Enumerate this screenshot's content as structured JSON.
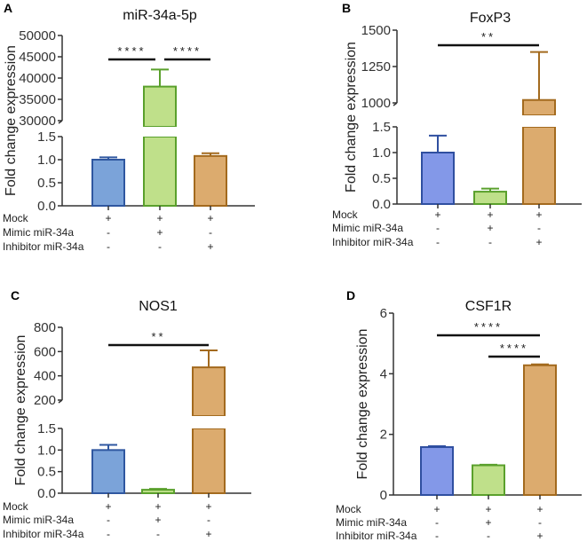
{
  "chart_data": [
    {
      "type": "bar",
      "panel": "A",
      "title": "miR-34a-5p",
      "ylabel": "Fold change expression",
      "broken_axis": true,
      "lower_ylim": [
        0,
        1.5
      ],
      "lower_ticks": [
        "0.0",
        "0.5",
        "1.0",
        "1.5"
      ],
      "upper_ylim": [
        30000,
        50000
      ],
      "upper_ticks": [
        "30000",
        "35000",
        "40000",
        "45000",
        "50000"
      ],
      "categories": [
        "Mock",
        "Mimic miR-34a",
        "Inhibitor miR-34a"
      ],
      "values": [
        1.0,
        38000,
        1.08
      ],
      "error_upper": [
        1.05,
        42000,
        1.14
      ],
      "colors": [
        "#7ba3d9",
        "#bfe08a",
        "#dcab6e"
      ],
      "edge_colors": [
        "#2f57a0",
        "#5aa02c",
        "#a36a1e"
      ],
      "treatment_rows": [
        {
          "label": "Mock",
          "marks": [
            "+",
            "+",
            "+"
          ]
        },
        {
          "label": "Mimic miR-34a",
          "marks": [
            "-",
            "+",
            "-"
          ]
        },
        {
          "label": "Inhibitor miR-34a",
          "marks": [
            "-",
            "-",
            "+"
          ]
        }
      ],
      "significance": [
        {
          "from": 0,
          "to": 1,
          "label": "****"
        },
        {
          "from": 1,
          "to": 2,
          "label": "****"
        }
      ]
    },
    {
      "type": "bar",
      "panel": "B",
      "title": "FoxP3",
      "ylabel": "Fold change expression",
      "broken_axis": true,
      "lower_ylim": [
        0,
        1.5
      ],
      "lower_ticks": [
        "0.0",
        "0.5",
        "1.0",
        "1.5"
      ],
      "upper_ylim": [
        1000,
        1500
      ],
      "upper_ticks": [
        "1000",
        "1250",
        "1500"
      ],
      "categories": [
        "Mock",
        "Mimic miR-34a",
        "Inhibitor miR-34a"
      ],
      "values": [
        1.0,
        0.24,
        1020
      ],
      "error_upper": [
        1.33,
        0.3,
        1350
      ],
      "colors": [
        "#8398e8",
        "#bfe08a",
        "#dcab6e"
      ],
      "edge_colors": [
        "#2f4fa0",
        "#5aa02c",
        "#a36a1e"
      ],
      "treatment_rows": [
        {
          "label": "Mock",
          "marks": [
            "+",
            "+",
            "+"
          ]
        },
        {
          "label": "Mimic miR-34a",
          "marks": [
            "-",
            "+",
            "-"
          ]
        },
        {
          "label": "Inhibitor miR-34a",
          "marks": [
            "-",
            "-",
            "+"
          ]
        }
      ],
      "significance": [
        {
          "from": 0,
          "to": 2,
          "label": "**"
        }
      ]
    },
    {
      "type": "bar",
      "panel": "C",
      "title": "NOS1",
      "ylabel": "Fold change expression",
      "broken_axis": true,
      "lower_ylim": [
        0,
        1.5
      ],
      "lower_ticks": [
        "0.0",
        "0.5",
        "1.0",
        "1.5"
      ],
      "upper_ylim": [
        200,
        800
      ],
      "upper_ticks": [
        "200",
        "400",
        "600",
        "800"
      ],
      "categories": [
        "Mock",
        "Mimic miR-34a",
        "Inhibitor miR-34a"
      ],
      "values": [
        1.0,
        0.08,
        470
      ],
      "error_upper": [
        1.12,
        0.1,
        610
      ],
      "colors": [
        "#7ba3d9",
        "#bfe08a",
        "#dcab6e"
      ],
      "edge_colors": [
        "#2f57a0",
        "#5aa02c",
        "#a36a1e"
      ],
      "treatment_rows": [
        {
          "label": "Mock",
          "marks": [
            "+",
            "+",
            "+"
          ]
        },
        {
          "label": "Mimic miR-34a",
          "marks": [
            "-",
            "+",
            "-"
          ]
        },
        {
          "label": "Inhibitor miR-34a",
          "marks": [
            "-",
            "-",
            "+"
          ]
        }
      ],
      "significance": [
        {
          "from": 0,
          "to": 2,
          "label": "**"
        }
      ]
    },
    {
      "type": "bar",
      "panel": "D",
      "title": "CSF1R",
      "ylabel": "Fold change expression",
      "broken_axis": false,
      "ylim": [
        0,
        6
      ],
      "ticks": [
        "0",
        "2",
        "4",
        "6"
      ],
      "categories": [
        "Mock",
        "Mimic miR-34a",
        "Inhibitor miR-34a"
      ],
      "values": [
        1.58,
        0.98,
        4.28
      ],
      "error_upper": [
        1.61,
        1.0,
        4.31
      ],
      "colors": [
        "#8398e8",
        "#bfe08a",
        "#dcab6e"
      ],
      "edge_colors": [
        "#2f4fa0",
        "#5aa02c",
        "#a36a1e"
      ],
      "treatment_rows": [
        {
          "label": "Mock",
          "marks": [
            "+",
            "+",
            "+"
          ]
        },
        {
          "label": "Mimic miR-34a",
          "marks": [
            "-",
            "+",
            "-"
          ]
        },
        {
          "label": "Inhibitor miR-34a",
          "marks": [
            "-",
            "-",
            "+"
          ]
        }
      ],
      "significance": [
        {
          "from": 0,
          "to": 2,
          "label": "****"
        },
        {
          "from": 1,
          "to": 2,
          "label": "****"
        }
      ]
    }
  ]
}
